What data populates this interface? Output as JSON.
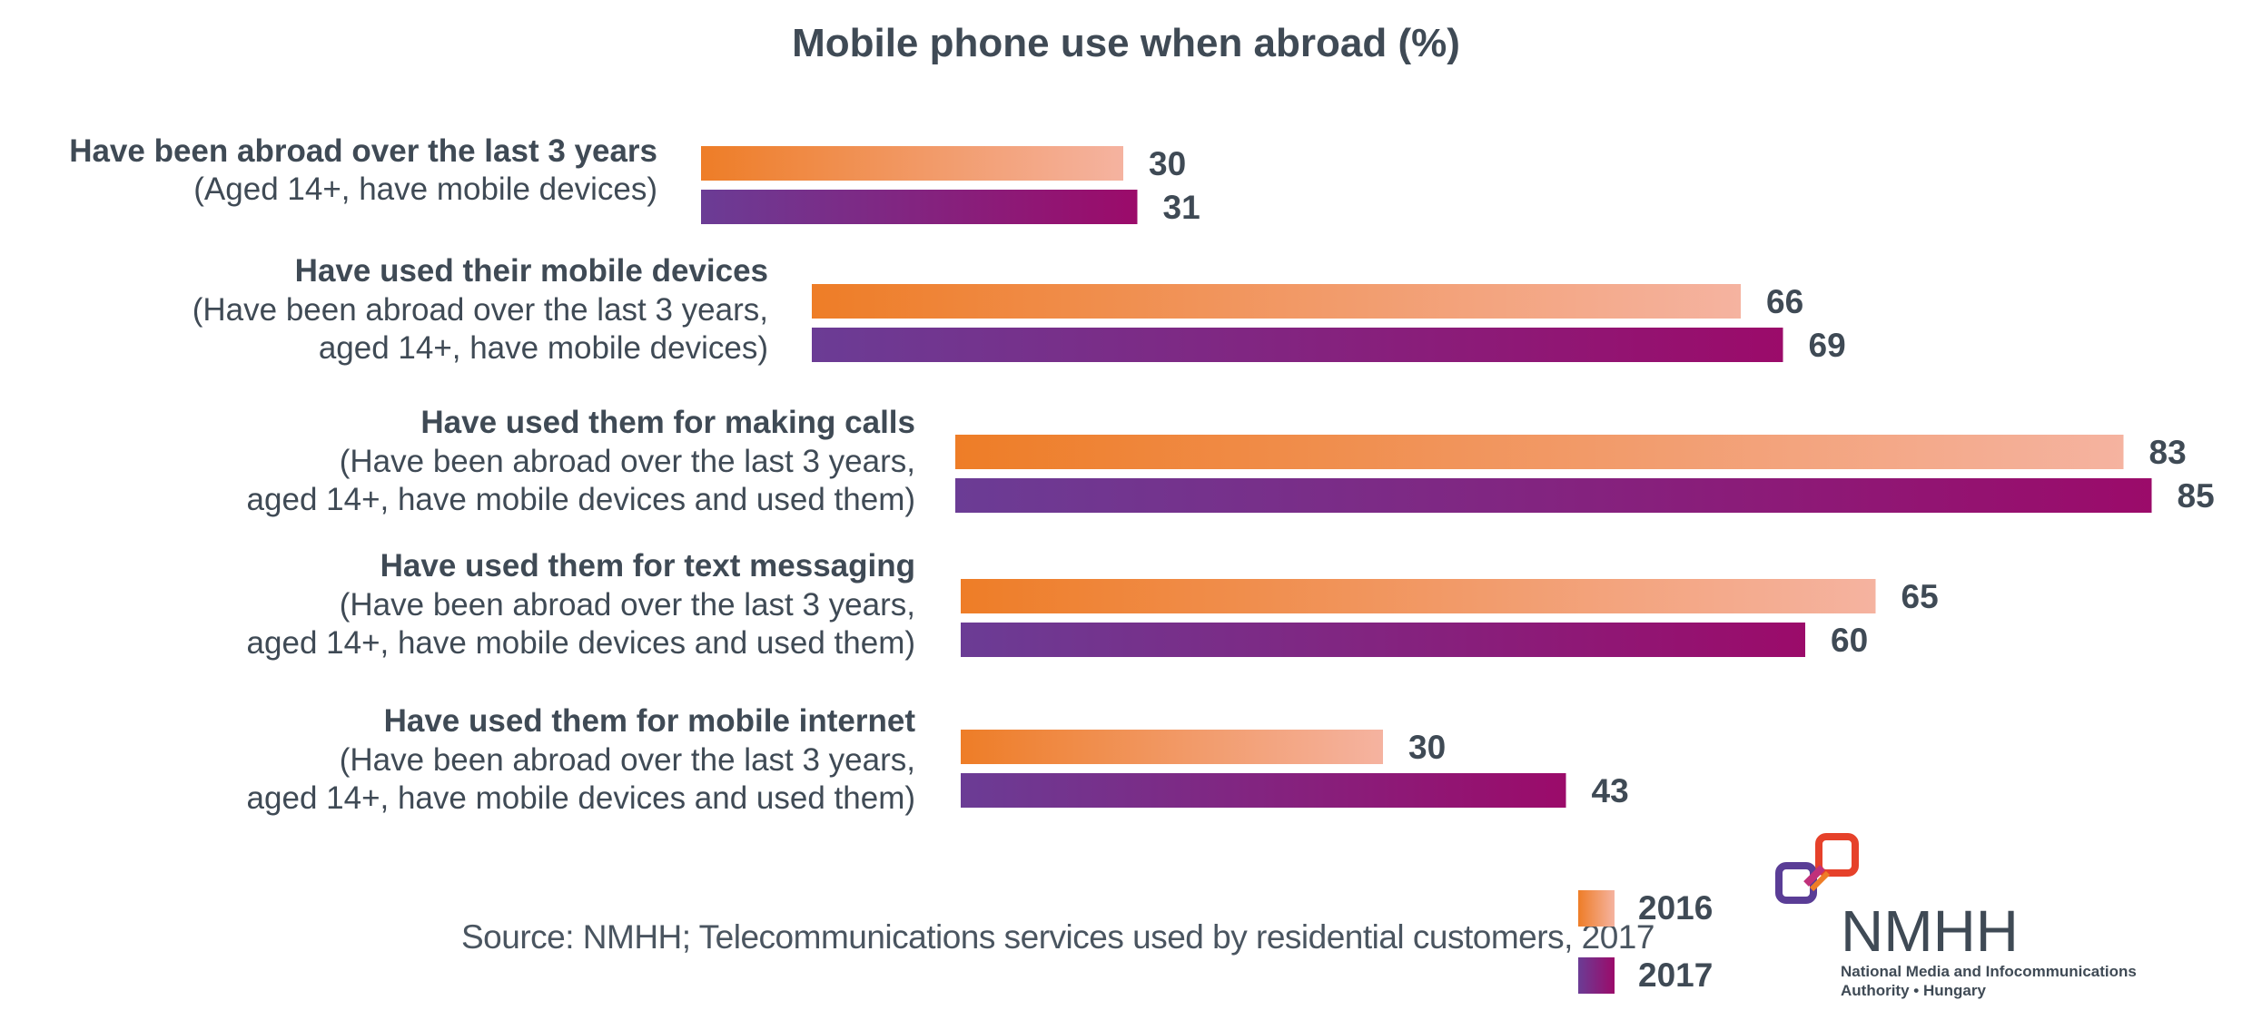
{
  "chart_data": {
    "type": "bar",
    "orientation": "horizontal",
    "title": "Mobile phone use when abroad (%)",
    "categories": [
      {
        "main": "Have been abroad over the last 3 years",
        "sub": [
          "(Aged 14+, have mobile devices)"
        ]
      },
      {
        "main": "Have used their mobile devices",
        "sub": [
          "(Have been abroad over the last 3 years,",
          "aged 14+, have mobile devices)"
        ]
      },
      {
        "main": "Have used them for making calls",
        "sub": [
          "(Have been abroad over the last 3 years,",
          "aged 14+, have mobile devices and used them)"
        ]
      },
      {
        "main": "Have used them for text messaging",
        "sub": [
          "(Have been abroad over the last 3 years,",
          "aged 14+, have mobile devices and used them)"
        ]
      },
      {
        "main": "Have used them for mobile internet",
        "sub": [
          "(Have been abroad over the last 3 years,",
          "aged 14+, have mobile devices and used them)"
        ]
      }
    ],
    "series": [
      {
        "name": "2016",
        "values": [
          30,
          66,
          83,
          65,
          30
        ],
        "color_start": "#ee7d27",
        "color_end": "#f5b3a0"
      },
      {
        "name": "2017",
        "values": [
          31,
          69,
          85,
          60,
          43
        ],
        "color_start": "#6b3c95",
        "color_end": "#9b0b6a"
      }
    ],
    "legend_position": "bottom-right",
    "grid": false
  },
  "source": "Source: NMHH; Telecommunications services used by residential customers, 2017",
  "logo": {
    "wordmark": "NMHH",
    "line1": "National Media and Infocommunications",
    "line2": "Authority • Hungary"
  }
}
